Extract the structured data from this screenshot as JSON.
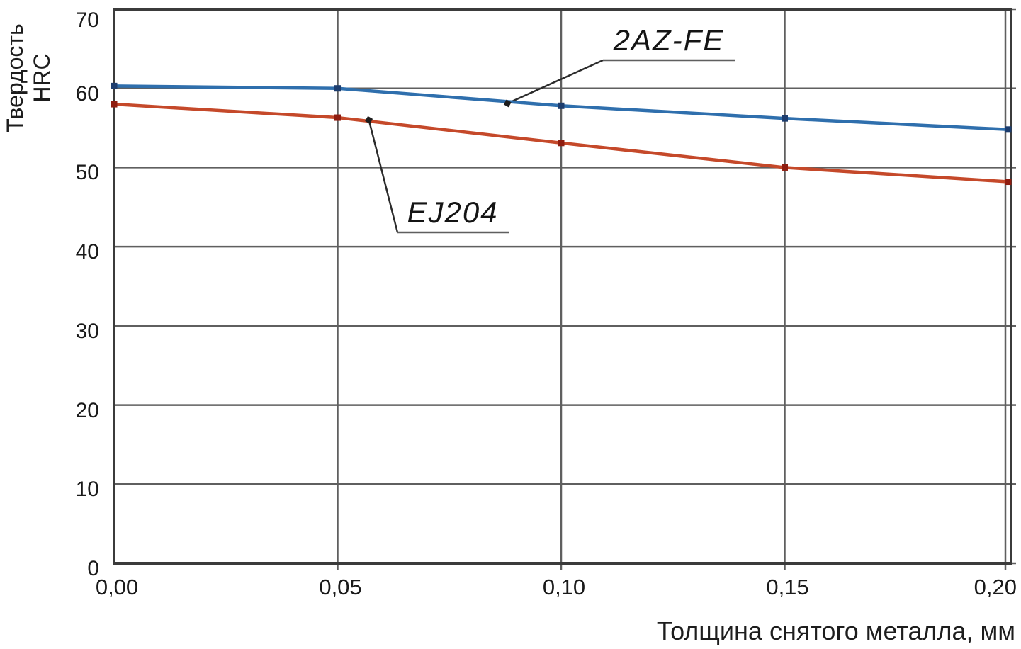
{
  "chart_data": {
    "type": "line",
    "title": "",
    "xlabel": "Толщина снятого металла, мм",
    "ylabel": "Твердость HRC",
    "ylabel_lines": [
      "Твердость",
      "HRC"
    ],
    "x": [
      0.0,
      0.05,
      0.1,
      0.15,
      0.2
    ],
    "xtick_labels": [
      "0,00",
      "0,05",
      "0,10",
      "0,15",
      "0,20"
    ],
    "yticks": [
      0,
      10,
      20,
      30,
      40,
      50,
      60,
      70
    ],
    "ytick_labels": [
      "0",
      "10",
      "20",
      "30",
      "40",
      "50",
      "60",
      "70"
    ],
    "xlim": [
      0,
      0.2
    ],
    "ylim": [
      0,
      70
    ],
    "grid": true,
    "legend_position": "inline-annotations",
    "series": [
      {
        "name": "2AZ-FE",
        "values": [
          60.3,
          60.0,
          57.8,
          56.2,
          54.8
        ],
        "line_color": "#2f6fad",
        "marker_color": "#1d3d6e"
      },
      {
        "name": "EJ204",
        "values": [
          58.0,
          56.3,
          53.1,
          50.0,
          48.2
        ],
        "line_color": "#c5492a",
        "marker_color": "#8f1d10"
      }
    ],
    "annotations": [
      {
        "text": "2AZ-FE",
        "series": "2AZ-FE",
        "attach": {
          "x": 0.088,
          "y": 58.1
        }
      },
      {
        "text": "EJ204",
        "series": "EJ204",
        "attach": {
          "x": 0.057,
          "y": 56.0
        }
      }
    ],
    "colors": {
      "background": "#ffffff",
      "grid": "#5f5f5f",
      "border": "#3b3b3b",
      "leader": "#2b2b2b",
      "underline": "#5f5f5f",
      "text": "#1a1a1a"
    }
  }
}
